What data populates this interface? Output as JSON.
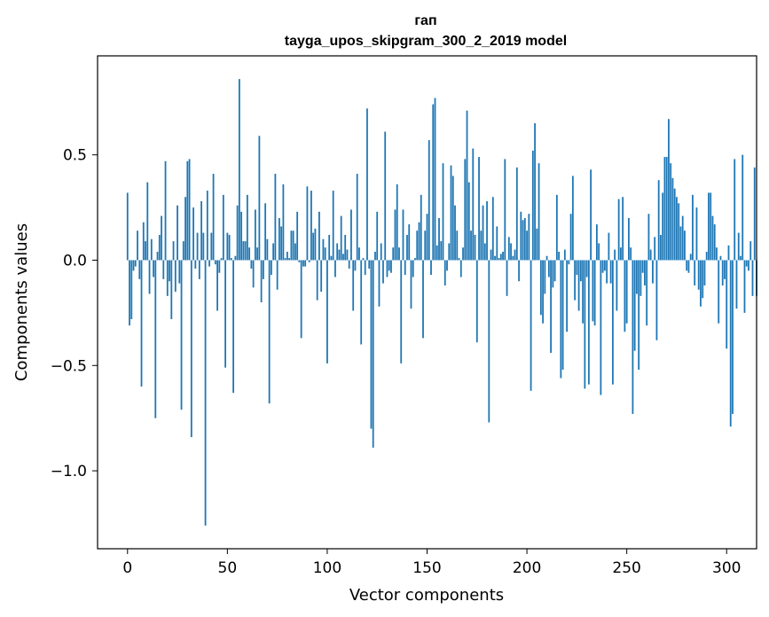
{
  "chart_data": {
    "type": "bar",
    "title_line1": "гап",
    "title_line2": "tayga_upos_skipgram_300_2_2019 model",
    "xlabel": "Vector components",
    "ylabel": "Components values",
    "xlim": [
      -15,
      315
    ],
    "ylim": [
      -1.37,
      0.97
    ],
    "xticks": [
      0,
      50,
      100,
      150,
      200,
      250,
      300
    ],
    "xtick_labels": [
      "0",
      "50",
      "100",
      "150",
      "200",
      "250",
      "300"
    ],
    "yticks": [
      -1.0,
      -0.5,
      0.0,
      0.5
    ],
    "ytick_labels": [
      "−1.0",
      "−0.5",
      "0.0",
      "0.5"
    ],
    "bar_color": "#1f77b4",
    "values": [
      0.32,
      -0.31,
      -0.28,
      -0.05,
      -0.03,
      0.14,
      -0.09,
      -0.6,
      0.18,
      0.09,
      0.37,
      -0.16,
      0.1,
      -0.08,
      -0.75,
      0.04,
      0.12,
      0.21,
      -0.09,
      0.47,
      -0.17,
      -0.1,
      -0.28,
      0.09,
      -0.15,
      0.26,
      -0.11,
      -0.71,
      0.09,
      0.3,
      0.47,
      0.48,
      -0.84,
      0.25,
      -0.04,
      0.13,
      -0.09,
      0.28,
      0.13,
      -1.26,
      0.33,
      -0.03,
      0.13,
      0.41,
      -0.02,
      -0.24,
      -0.06,
      0.01,
      0.31,
      -0.51,
      0.13,
      0.12,
      0.01,
      -0.63,
      0.02,
      0.26,
      0.86,
      0.23,
      0.09,
      0.09,
      0.31,
      0.06,
      -0.04,
      -0.13,
      0.24,
      0.06,
      0.59,
      -0.2,
      -0.09,
      0.27,
      0.1,
      -0.68,
      -0.07,
      0.08,
      0.41,
      -0.14,
      0.2,
      0.16,
      0.36,
      0.01,
      0.04,
      0.01,
      0.14,
      0.14,
      0.08,
      0.23,
      -0.01,
      -0.37,
      -0.03,
      -0.03,
      0.35,
      -0.01,
      0.33,
      0.13,
      0.15,
      -0.19,
      0.23,
      -0.15,
      0.1,
      0.06,
      -0.49,
      0.12,
      0.02,
      0.33,
      -0.08,
      0.08,
      0.05,
      0.21,
      0.03,
      0.12,
      0.05,
      -0.04,
      0.24,
      -0.24,
      -0.05,
      0.41,
      0.06,
      -0.4,
      0.01,
      -0.07,
      0.72,
      -0.04,
      -0.8,
      -0.89,
      0.04,
      0.23,
      -0.22,
      0.08,
      -0.11,
      0.61,
      -0.08,
      -0.05,
      -0.06,
      0.06,
      0.24,
      0.36,
      0.06,
      -0.49,
      0.24,
      -0.07,
      0.12,
      0.17,
      -0.23,
      -0.08,
      0.01,
      0.14,
      0.18,
      0.31,
      -0.37,
      0.14,
      0.22,
      0.57,
      -0.07,
      0.74,
      0.77,
      0.07,
      0.2,
      0.09,
      0.46,
      -0.12,
      -0.05,
      0.08,
      0.45,
      0.4,
      0.26,
      0.14,
      0.01,
      -0.08,
      0.06,
      0.48,
      0.71,
      0.37,
      0.14,
      0.53,
      0.12,
      -0.39,
      0.49,
      0.14,
      0.26,
      0.08,
      0.28,
      -0.77,
      0.05,
      0.3,
      0.02,
      0.16,
      0.01,
      0.03,
      0.04,
      0.48,
      -0.17,
      0.11,
      0.08,
      0.02,
      0.05,
      0.44,
      -0.1,
      0.23,
      0.19,
      0.2,
      0.14,
      0.22,
      -0.62,
      0.52,
      0.65,
      0.15,
      0.46,
      -0.26,
      -0.3,
      -0.16,
      0.02,
      -0.08,
      -0.44,
      -0.13,
      -0.1,
      0.31,
      0.04,
      -0.56,
      -0.52,
      0.05,
      -0.34,
      -0.02,
      0.22,
      0.4,
      -0.19,
      -0.07,
      -0.24,
      -0.1,
      -0.3,
      -0.61,
      -0.08,
      -0.59,
      0.43,
      -0.29,
      -0.31,
      0.17,
      0.08,
      -0.64,
      -0.06,
      -0.05,
      -0.11,
      0.13,
      -0.11,
      -0.59,
      0.05,
      -0.24,
      0.29,
      0.06,
      0.3,
      -0.34,
      -0.3,
      0.2,
      0.06,
      -0.73,
      -0.43,
      -0.16,
      -0.52,
      -0.17,
      -0.06,
      -0.12,
      -0.31,
      0.22,
      0.05,
      -0.11,
      0.11,
      -0.38,
      0.38,
      0.12,
      0.32,
      0.49,
      0.49,
      0.67,
      0.46,
      0.39,
      0.34,
      0.3,
      0.27,
      0.16,
      0.21,
      0.14,
      -0.05,
      -0.06,
      0.03,
      0.31,
      -0.12,
      0.25,
      -0.14,
      -0.22,
      -0.18,
      -0.12,
      0.04,
      0.32,
      0.32,
      0.21,
      0.17,
      0.06,
      -0.3,
      0.02,
      -0.12,
      -0.09,
      -0.42,
      0.07,
      -0.79,
      -0.73,
      0.48,
      -0.23,
      0.13,
      0.02,
      0.5,
      -0.25,
      -0.03,
      -0.05,
      0.09,
      -0.17,
      0.44,
      -0.17
    ]
  }
}
